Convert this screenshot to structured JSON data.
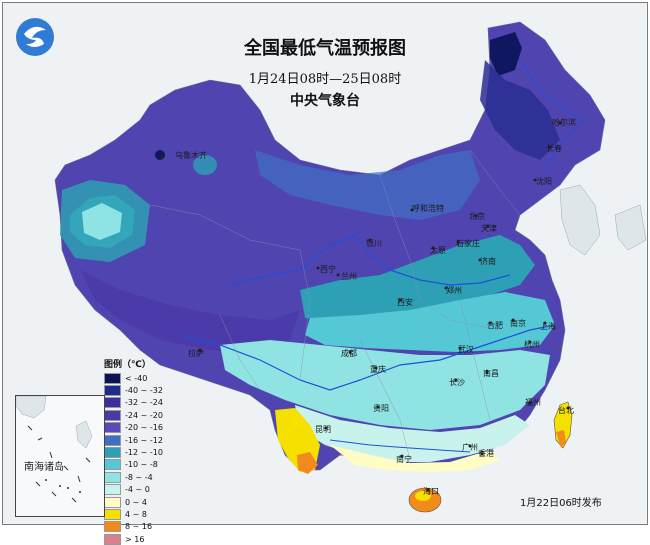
{
  "title": "全国最低气温预报图",
  "time_range": "1月24日08时—25日08时",
  "issuer": "中央气象台",
  "published": "1月22日06时发布",
  "inset_label": "南海诸岛",
  "legend": {
    "title": "图例（℃）",
    "items": [
      {
        "label": "< -40",
        "color": "#0b1354"
      },
      {
        "label": "-40 ~ -32",
        "color": "#1f2a8c"
      },
      {
        "label": "-32 ~ -24",
        "color": "#3b2f9e"
      },
      {
        "label": "-24 ~ -20",
        "color": "#4a3aa8"
      },
      {
        "label": "-20 ~ -16",
        "color": "#5a49b8"
      },
      {
        "label": "-16 ~ -12",
        "color": "#3f6fc4"
      },
      {
        "label": "-12 ~ -10",
        "color": "#2ea0b5"
      },
      {
        "label": "-10 ~ -8",
        "color": "#55c8d6"
      },
      {
        "label": "-8 ~ -4",
        "color": "#8fe3e3"
      },
      {
        "label": "-4 ~ 0",
        "color": "#c8f3ec"
      },
      {
        "label": "0 ~ 4",
        "color": "#fffdc4"
      },
      {
        "label": "4 ~ 8",
        "color": "#f6e000"
      },
      {
        "label": "8 ~ 16",
        "color": "#f28a1c"
      },
      {
        "label": "> 16",
        "color": "#d9808c"
      }
    ]
  },
  "cities": {
    "urumqi": "乌鲁木齐",
    "harbin": "哈尔滨",
    "changchun": "长春",
    "shenyang": "沈阳",
    "hohhot": "呼和浩特",
    "beijing": "北京",
    "tianjin": "天津",
    "yinchuan": "银川",
    "taiyuan": "太原",
    "shijiazhuang": "石家庄",
    "jinan": "济南",
    "xining": "西宁",
    "lanzhou": "兰州",
    "zhengzhou": "郑州",
    "xian": "西安",
    "hefei": "合肥",
    "nanjing": "南京",
    "shanghai": "上海",
    "hangzhou": "杭州",
    "lhasa": "拉萨",
    "chengdu": "成都",
    "wuhan": "武汉",
    "chongqing": "重庆",
    "changsha": "长沙",
    "nanchang": "南昌",
    "guiyang": "贵阳",
    "fuzhou": "福州",
    "taipei": "台北",
    "kunming": "昆明",
    "nanning": "南宁",
    "guangzhou": "广州",
    "hongkong": "香港",
    "haikou": "海口"
  }
}
